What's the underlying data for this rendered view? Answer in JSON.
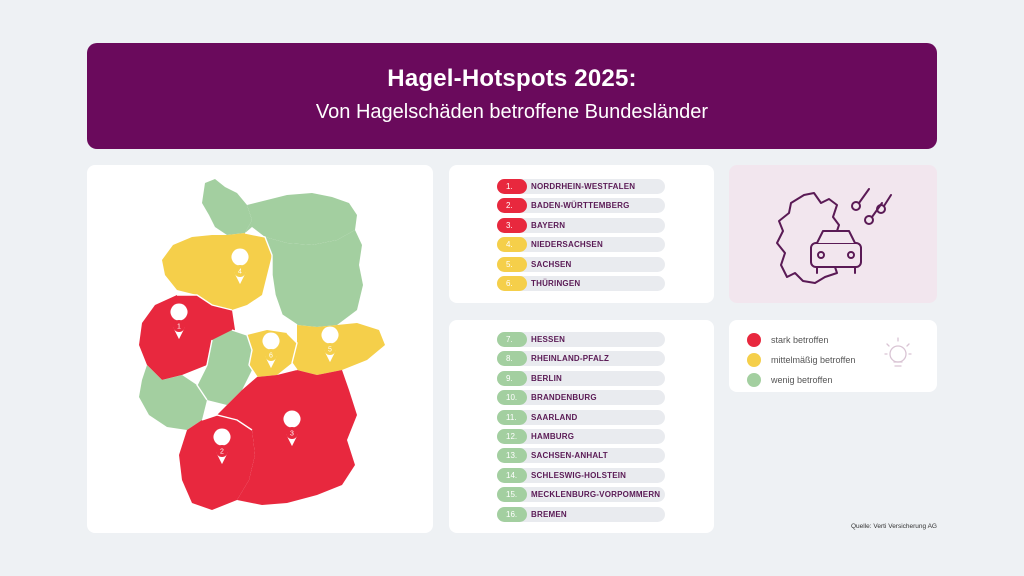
{
  "header": {
    "title": "Hagel-Hotspots 2025:",
    "subtitle": "Von Hagelschäden betroffene Bundesländer"
  },
  "colors": {
    "banner": "#6a0a5c",
    "stark": "#e8283e",
    "mittel": "#f5cf4a",
    "wenig": "#a3cfa0"
  },
  "map": {
    "markers": [
      {
        "label": "1"
      },
      {
        "label": "2"
      },
      {
        "label": "3"
      },
      {
        "label": "4"
      },
      {
        "label": "5"
      },
      {
        "label": "6"
      }
    ]
  },
  "ranking_top": [
    {
      "rank": "1.",
      "name": "NORDRHEIN-WESTFALEN",
      "level": "red"
    },
    {
      "rank": "2.",
      "name": "BADEN-WÜRTTEMBERG",
      "level": "red"
    },
    {
      "rank": "3.",
      "name": "BAYERN",
      "level": "red"
    },
    {
      "rank": "4.",
      "name": "NIEDERSACHSEN",
      "level": "yellow"
    },
    {
      "rank": "5.",
      "name": "SACHSEN",
      "level": "yellow"
    },
    {
      "rank": "6.",
      "name": "THÜRINGEN",
      "level": "yellow"
    }
  ],
  "ranking_rest": [
    {
      "rank": "7.",
      "name": "HESSEN",
      "level": "green"
    },
    {
      "rank": "8.",
      "name": "RHEINLAND-PFALZ",
      "level": "green"
    },
    {
      "rank": "9.",
      "name": "BERLIN",
      "level": "green"
    },
    {
      "rank": "10.",
      "name": "BRANDENBURG",
      "level": "green"
    },
    {
      "rank": "11.",
      "name": "SAARLAND",
      "level": "green"
    },
    {
      "rank": "12.",
      "name": "HAMBURG",
      "level": "green"
    },
    {
      "rank": "13.",
      "name": "SACHSEN-ANHALT",
      "level": "green"
    },
    {
      "rank": "14.",
      "name": "SCHLESWIG-HOLSTEIN",
      "level": "green"
    },
    {
      "rank": "15.",
      "name": "MECKLENBURG-VORPOMMERN",
      "level": "green"
    },
    {
      "rank": "16.",
      "name": "BREMEN",
      "level": "green"
    }
  ],
  "legend": [
    {
      "label": "stark betroffen",
      "level": "red"
    },
    {
      "label": "mittelmäßig betroffen",
      "level": "yellow"
    },
    {
      "label": "wenig betroffen",
      "level": "green"
    }
  ],
  "source": "Quelle: Verti Versicherung AG"
}
